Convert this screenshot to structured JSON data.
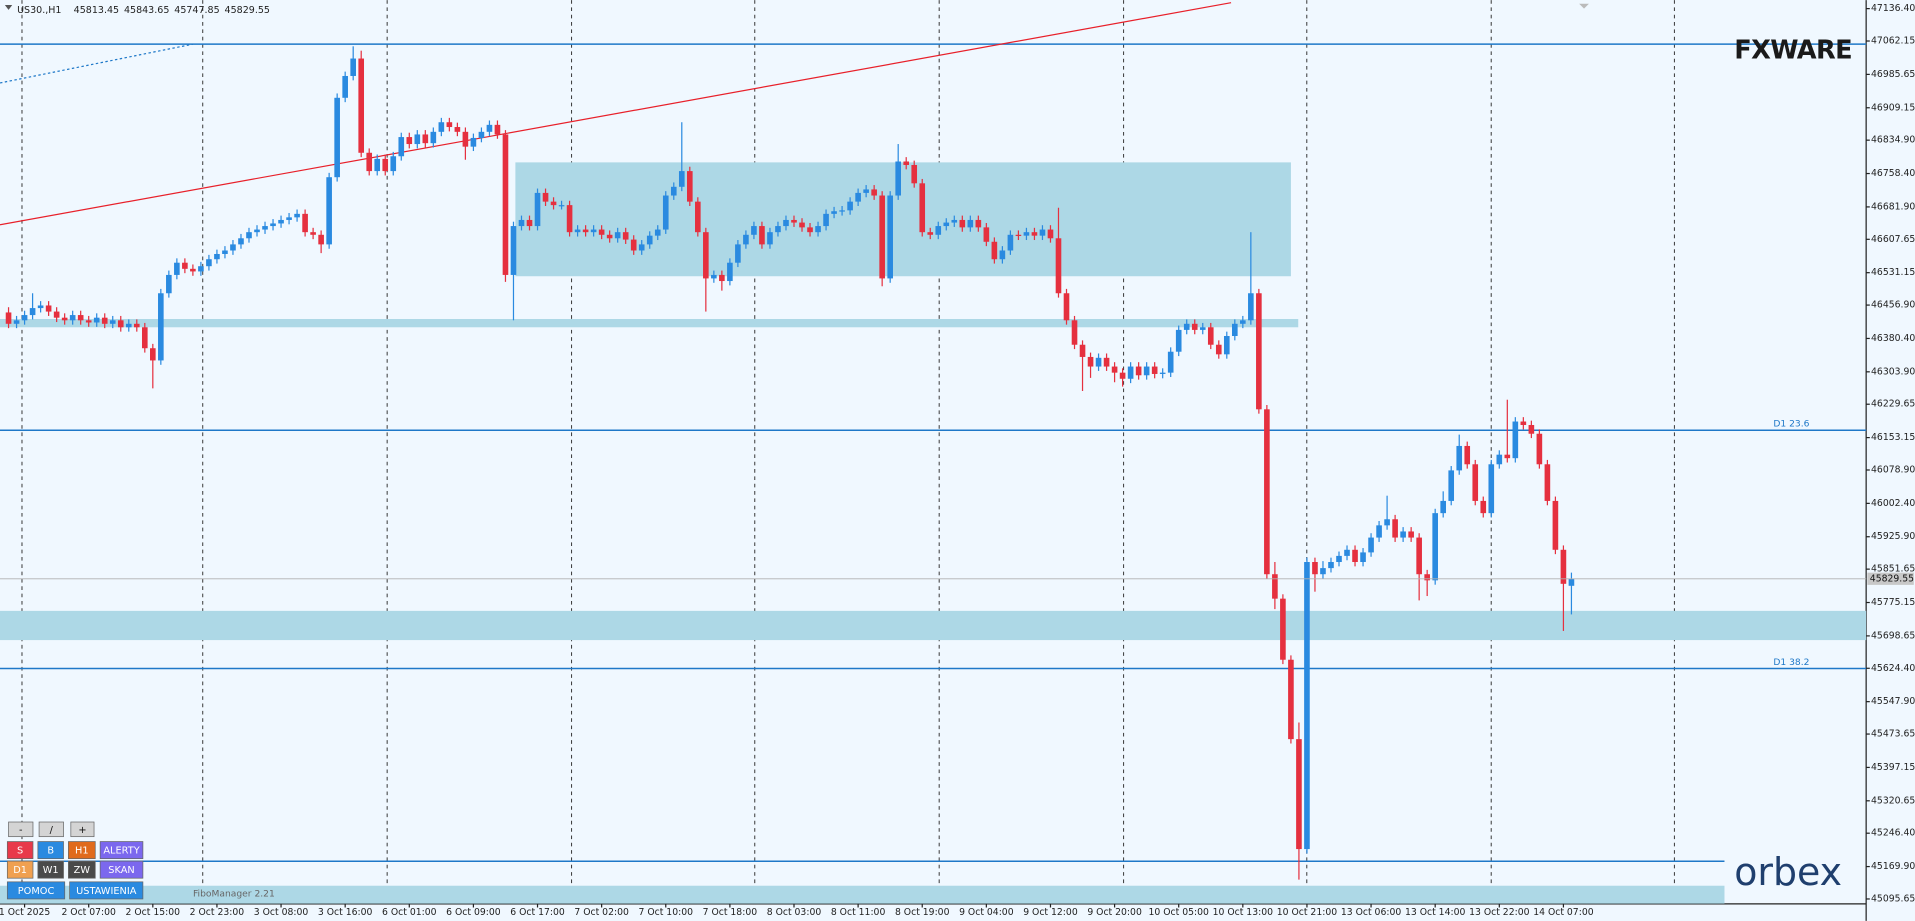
{
  "ui": {
    "symbol": "US30.,H1",
    "top_logo": "FXWARE",
    "bottom_logo": "orbex",
    "indicator": "FiboManager 2.21",
    "toolbar": [
      [
        "-",
        "/",
        "+"
      ],
      [
        "S",
        "B",
        "H1",
        "ALERTY"
      ],
      [
        "D1",
        "W1",
        "ZW",
        "SKAN"
      ],
      [
        "POMOC",
        "USTAWIENIA"
      ]
    ]
  },
  "chart_data": {
    "type": "candlestick",
    "up_color": "#2a8ae0",
    "down_color": "#e5303f",
    "ylim": [
      45084.5,
      47156
    ],
    "yticks": [
      {
        "value": 47136.4,
        "label": "47136.40"
      },
      47062.15,
      46985.65,
      46909.15,
      {
        "value": 46834.9,
        "label": "46834.90"
      },
      {
        "value": 46758.4,
        "label": "46758.40"
      },
      {
        "value": 46681.9,
        "label": "46681.90"
      },
      46607.65,
      46531.15,
      {
        "value": 46456.9,
        "label": "46456.90"
      },
      {
        "value": 46380.4,
        "label": "46380.40"
      },
      {
        "value": 46303.9,
        "label": "46303.90"
      },
      46229.65,
      46153.15,
      {
        "value": 46078.9,
        "label": "46078.90"
      },
      {
        "value": 46002.4,
        "label": "46002.40"
      },
      {
        "value": 45925.9,
        "label": "45925.90"
      },
      45851.65,
      45775.15,
      45698.65,
      {
        "value": 45624.4,
        "label": "45624.40"
      },
      {
        "value": 45547.9,
        "label": "45547.90"
      },
      45473.65,
      45397.15,
      45320.65,
      {
        "value": 45246.4,
        "label": "45246.40"
      },
      {
        "value": 45169.9,
        "label": "45169.90"
      },
      45095.65
    ],
    "categories": [
      null,
      null,
      "1 Oct 2025",
      null,
      null,
      null,
      null,
      null,
      null,
      null,
      "2 Oct 07:00",
      null,
      null,
      null,
      null,
      null,
      null,
      null,
      "2 Oct 15:00",
      null,
      null,
      null,
      null,
      null,
      null,
      null,
      "2 Oct 23:00",
      null,
      null,
      null,
      null,
      null,
      null,
      null,
      "3 Oct 08:00",
      null,
      null,
      null,
      null,
      null,
      null,
      null,
      "3 Oct 16:00",
      null,
      null,
      null,
      null,
      null,
      null,
      null,
      "6 Oct 01:00",
      null,
      null,
      null,
      null,
      null,
      null,
      null,
      "6 Oct 09:00",
      null,
      null,
      null,
      null,
      null,
      null,
      null,
      "6 Oct 17:00",
      null,
      null,
      null,
      null,
      null,
      null,
      null,
      "7 Oct 02:00",
      null,
      null,
      null,
      null,
      null,
      null,
      null,
      "7 Oct 10:00",
      null,
      null,
      null,
      null,
      null,
      null,
      null,
      "7 Oct 18:00",
      null,
      null,
      null,
      null,
      null,
      null,
      null,
      "8 Oct 03:00",
      null,
      null,
      null,
      null,
      null,
      null,
      null,
      "8 Oct 11:00",
      null,
      null,
      null,
      null,
      null,
      null,
      null,
      "8 Oct 19:00",
      null,
      null,
      null,
      null,
      null,
      null,
      null,
      "9 Oct 04:00",
      null,
      null,
      null,
      null,
      null,
      null,
      null,
      "9 Oct 12:00",
      null,
      null,
      null,
      null,
      null,
      null,
      null,
      "9 Oct 20:00",
      null,
      null,
      null,
      null,
      null,
      null,
      null,
      "10 Oct 05:00",
      null,
      null,
      null,
      null,
      null,
      null,
      null,
      "10 Oct 13:00",
      null,
      null,
      null,
      null,
      null,
      null,
      null,
      "10 Oct 21:00",
      null,
      null,
      null,
      null,
      null,
      null,
      null,
      "13 Oct 06:00",
      null,
      null,
      null,
      null,
      null,
      null,
      null,
      "13 Oct 14:00",
      null,
      null,
      null,
      null,
      null,
      null,
      null,
      "13 Oct 22:00",
      null,
      null,
      null,
      null,
      null,
      null,
      null,
      "14 Oct 07:00",
      null
    ],
    "open": [
      46440,
      46414,
      46422,
      46434,
      46450,
      46456,
      46442,
      46428,
      46422,
      46434,
      46422,
      46417,
      46428,
      46414,
      46422,
      46406,
      46414,
      46406,
      46358,
      46330,
      46484,
      46526,
      46554,
      46540,
      46534,
      46546,
      46562,
      46574,
      46582,
      46596,
      46610,
      46624,
      46630,
      46638,
      46644,
      46652,
      46658,
      46666,
      46624,
      46618,
      46596,
      46750,
      46932,
      46982,
      47022,
      46806,
      46764,
      46792,
      46764,
      46798,
      46842,
      46826,
      46848,
      46828,
      46854,
      46876,
      46865,
      46854,
      46820,
      46840,
      46854,
      46870,
      46848,
      46526,
      46638,
      46652,
      46638,
      46714,
      46694,
      46686,
      46686,
      46624,
      46630,
      46624,
      46630,
      46618,
      46610,
      46624,
      46607,
      46582,
      46596,
      46616,
      46630,
      46708,
      46728,
      46764,
      46694,
      46624,
      46518,
      46526,
      46512,
      46554,
      46596,
      46618,
      46638,
      46596,
      46624,
      46638,
      46652,
      46646,
      46635,
      46624,
      46638,
      46666,
      46672,
      46674,
      46694,
      46714,
      46722,
      46708,
      46518,
      46708,
      46786,
      46778,
      46736,
      46624,
      46618,
      46638,
      46646,
      46652,
      46635,
      46652,
      46635,
      46602,
      46562,
      46582,
      46618,
      46616,
      46624,
      46616,
      46630,
      46610,
      46484,
      46422,
      46366,
      46338,
      46316,
      46336,
      46316,
      46302,
      46288,
      46316,
      46296,
      46316,
      46299,
      46302,
      46350,
      46400,
      46414,
      46400,
      46406,
      46366,
      46344,
      46386,
      46414,
      46422,
      46484,
      46218,
      45840,
      45784,
      45644,
      45462,
      45210,
      45868,
      45840,
      45854,
      45868,
      45882,
      45896,
      45868,
      45890,
      45924,
      45952,
      45966,
      45924,
      45938,
      45924,
      45840,
      45826,
      45980,
      46008,
      46078,
      46134,
      46092,
      46008,
      45980,
      46092,
      46114,
      46106,
      46190,
      46182,
      46162,
      46092,
      46008,
      45896,
      45813.45
    ],
    "high": [
      46452,
      46432,
      46444,
      46484,
      46466,
      46466,
      46452,
      46438,
      46444,
      46444,
      46432,
      46438,
      46438,
      46432,
      46432,
      46424,
      46424,
      46416,
      46368,
      46494,
      46536,
      46564,
      46564,
      46550,
      46556,
      46572,
      46584,
      46592,
      46606,
      46620,
      46634,
      46640,
      46648,
      46654,
      46662,
      46668,
      46676,
      46676,
      46634,
      46628,
      46760,
      46942,
      46992,
      47050,
      47040,
      46816,
      46802,
      46802,
      46808,
      46852,
      46852,
      46858,
      46858,
      46864,
      46886,
      46886,
      46875,
      46864,
      46850,
      46864,
      46880,
      46880,
      46858,
      46648,
      46662,
      46662,
      46724,
      46724,
      46704,
      46696,
      46696,
      46640,
      46640,
      46640,
      46640,
      46628,
      46634,
      46634,
      46617,
      46606,
      46626,
      46640,
      46718,
      46738,
      46876,
      46774,
      46704,
      46634,
      46536,
      46536,
      46564,
      46606,
      46628,
      46648,
      46648,
      46634,
      46648,
      46662,
      46662,
      46656,
      46645,
      46648,
      46676,
      46682,
      46684,
      46704,
      46724,
      46732,
      46732,
      46718,
      46718,
      46826,
      46796,
      46788,
      46746,
      46634,
      46648,
      46656,
      46662,
      46662,
      46662,
      46662,
      46645,
      46612,
      46592,
      46628,
      46628,
      46634,
      46634,
      46640,
      46640,
      46680,
      46494,
      46432,
      46376,
      46348,
      46346,
      46346,
      46326,
      46312,
      46326,
      46326,
      46326,
      46326,
      46312,
      46360,
      46410,
      46424,
      46424,
      46416,
      46416,
      46376,
      46396,
      46424,
      46432,
      46624,
      46494,
      46228,
      45868,
      45794,
      45654,
      45500,
      45878,
      45878,
      45870,
      45878,
      45892,
      45906,
      45906,
      45900,
      45934,
      45962,
      46020,
      45976,
      45948,
      45948,
      45934,
      45850,
      45990,
      46030,
      46088,
      46160,
      46144,
      46102,
      46018,
      46102,
      46124,
      46240,
      46200,
      46200,
      46192,
      46172,
      46102,
      46018,
      45906,
      45843.65
    ],
    "low": [
      46404,
      46404,
      46412,
      46424,
      46440,
      46432,
      46418,
      46412,
      46412,
      46412,
      46407,
      46407,
      46404,
      46404,
      46396,
      46396,
      46396,
      46348,
      46266,
      46320,
      46474,
      46516,
      46530,
      46524,
      46524,
      46536,
      46552,
      46564,
      46572,
      46586,
      46600,
      46614,
      46620,
      46628,
      46634,
      46642,
      46648,
      46614,
      46608,
      46576,
      46586,
      46740,
      46922,
      46972,
      46796,
      46754,
      46754,
      46754,
      46754,
      46788,
      46816,
      46816,
      46818,
      46818,
      46844,
      46855,
      46844,
      46790,
      46810,
      46830,
      46844,
      46838,
      46510,
      46422,
      46628,
      46628,
      46628,
      46684,
      46676,
      46676,
      46614,
      46614,
      46614,
      46614,
      46608,
      46600,
      46600,
      46597,
      46572,
      46572,
      46586,
      46606,
      46620,
      46698,
      46718,
      46684,
      46614,
      46442,
      46508,
      46490,
      46502,
      46544,
      46586,
      46608,
      46586,
      46586,
      46614,
      46628,
      46636,
      46625,
      46614,
      46614,
      46628,
      46656,
      46662,
      46664,
      46684,
      46704,
      46698,
      46500,
      46508,
      46698,
      46768,
      46726,
      46614,
      46608,
      46608,
      46628,
      46636,
      46625,
      46625,
      46625,
      46592,
      46552,
      46552,
      46572,
      46606,
      46606,
      46606,
      46606,
      46600,
      46474,
      46412,
      46356,
      46260,
      46290,
      46306,
      46306,
      46280,
      46270,
      46278,
      46286,
      46286,
      46289,
      46289,
      46292,
      46340,
      46390,
      46390,
      46390,
      46356,
      46334,
      46334,
      46376,
      46404,
      46412,
      46208,
      45830,
      45760,
      45634,
      45452,
      45140,
      45200,
      45800,
      45830,
      45844,
      45858,
      45872,
      45858,
      45858,
      45880,
      45914,
      45942,
      45914,
      45914,
      45914,
      45780,
      45790,
      45816,
      45970,
      45998,
      46068,
      46082,
      45998,
      45970,
      45970,
      46082,
      46096,
      46096,
      46172,
      46152,
      46082,
      45998,
      45886,
      45710,
      45747.85
    ],
    "close": [
      46414,
      46422,
      46434,
      46450,
      46456,
      46442,
      46428,
      46422,
      46434,
      46422,
      46417,
      46428,
      46414,
      46422,
      46406,
      46414,
      46406,
      46358,
      46330,
      46484,
      46526,
      46554,
      46540,
      46534,
      46546,
      46562,
      46574,
      46582,
      46596,
      46610,
      46624,
      46630,
      46638,
      46644,
      46652,
      46658,
      46666,
      46624,
      46618,
      46596,
      46750,
      46932,
      46982,
      47022,
      46806,
      46764,
      46792,
      46764,
      46798,
      46842,
      46826,
      46848,
      46828,
      46854,
      46876,
      46865,
      46854,
      46820,
      46840,
      46854,
      46870,
      46848,
      46526,
      46638,
      46652,
      46638,
      46714,
      46694,
      46686,
      46686,
      46624,
      46630,
      46624,
      46630,
      46618,
      46610,
      46624,
      46607,
      46582,
      46596,
      46616,
      46630,
      46708,
      46728,
      46764,
      46694,
      46624,
      46518,
      46526,
      46512,
      46554,
      46596,
      46618,
      46638,
      46596,
      46624,
      46638,
      46652,
      46646,
      46635,
      46624,
      46638,
      46666,
      46672,
      46674,
      46694,
      46714,
      46722,
      46708,
      46518,
      46708,
      46786,
      46778,
      46736,
      46624,
      46618,
      46638,
      46646,
      46652,
      46635,
      46652,
      46635,
      46602,
      46562,
      46582,
      46618,
      46616,
      46624,
      46616,
      46630,
      46610,
      46484,
      46422,
      46366,
      46338,
      46316,
      46336,
      46316,
      46302,
      46288,
      46316,
      46296,
      46316,
      46299,
      46302,
      46350,
      46400,
      46414,
      46400,
      46406,
      46366,
      46344,
      46386,
      46414,
      46422,
      46484,
      46218,
      45840,
      45784,
      45644,
      45462,
      45210,
      45868,
      45840,
      45854,
      45868,
      45882,
      45896,
      45868,
      45890,
      45924,
      45952,
      45966,
      45924,
      45938,
      45924,
      45840,
      45826,
      45980,
      46008,
      46078,
      46134,
      46092,
      46008,
      45980,
      46092,
      46114,
      46106,
      46190,
      46182,
      46162,
      46092,
      46008,
      45896,
      45818,
      45829.55
    ],
    "zones": [
      {
        "high": 46784,
        "low": 46523
      },
      {
        "high": 46425,
        "low": 46406
      },
      {
        "high": 45756,
        "low": 45689
      },
      {
        "high": 45126,
        "low": 45085
      }
    ],
    "levels": [
      {
        "value": 47055
      },
      {
        "value": 46170,
        "label": "D1 23.6"
      },
      {
        "value": 45624,
        "label": "D1 38.2"
      },
      {
        "value": 45182
      }
    ],
    "trendlines": [
      {
        "start": 46641,
        "end": 47150,
        "color": "#e8202a"
      },
      {
        "start": 46966,
        "end": 47055,
        "color": "#1e78c8",
        "dashed": true
      }
    ]
  }
}
